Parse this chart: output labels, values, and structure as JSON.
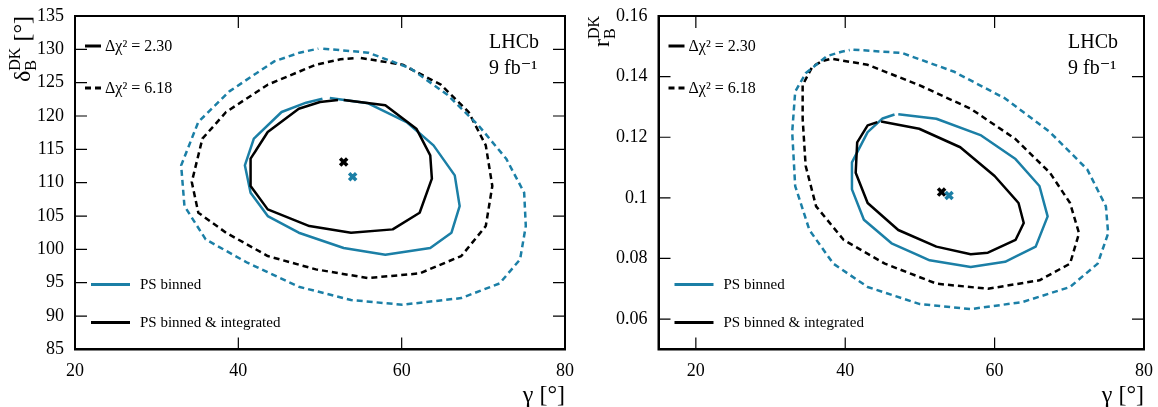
{
  "chart_data": [
    {
      "type": "line",
      "xlabel": "γ [°]",
      "ylabel": "δ$_{B}$$^{DK}$ [°]",
      "xlim": [
        20,
        80
      ],
      "xticks": [
        20,
        40,
        60,
        80
      ],
      "ylim": [
        85,
        135
      ],
      "yticks": [
        85,
        90,
        95,
        100,
        105,
        110,
        115,
        120,
        125,
        130,
        135
      ],
      "grid": false,
      "legend": "left",
      "annotations": [
        "Δχ² = 2.30",
        "LHCb",
        "9 fb⁻¹"
      ],
      "series": [
        {
          "name": "PS binned",
          "color": "#1b7fa6",
          "line_style": "solid",
          "x": [
            51.2,
            55.9,
            60.6,
            63.9,
            66.5,
            67.1,
            66.1,
            63.5,
            58.0,
            52.9,
            47.4,
            43.6,
            41.5,
            40.8,
            41.9,
            45.3,
            48.3,
            50.3
          ],
          "values": [
            122.7,
            121.9,
            119.1,
            115.6,
            111.1,
            106.5,
            102.5,
            100.2,
            99.2,
            100.2,
            102.5,
            105.0,
            108.5,
            112.6,
            116.6,
            120.6,
            122.0,
            122.6
          ]
        },
        {
          "name": "PS binned & integrated",
          "color": "#000000",
          "line_style": "solid",
          "x": [
            52.9,
            58.0,
            61.8,
            63.5,
            63.7,
            62.2,
            58.9,
            53.8,
            48.7,
            43.6,
            41.5,
            41.5,
            43.6,
            47.4,
            50.0,
            52.2
          ],
          "values": [
            122.4,
            121.6,
            118.1,
            114.1,
            110.6,
            105.5,
            103.0,
            102.5,
            103.5,
            106.0,
            109.5,
            113.6,
            117.6,
            121.1,
            122.1,
            122.4
          ]
        },
        {
          "name": "Δχ² = 6.18",
          "color": "#000000",
          "line_style": "dashed",
          "x": [
            55.0,
            60.1,
            64.8,
            68.2,
            70.3,
            71.1,
            70.3,
            67.3,
            62.2,
            55.9,
            49.5,
            43.6,
            38.5,
            35.1,
            34.3,
            35.6,
            38.5,
            43.6,
            49.5,
            52.5,
            54.4
          ],
          "values": [
            128.7,
            127.7,
            124.7,
            120.6,
            115.6,
            109.5,
            103.5,
            99.0,
            96.4,
            95.7,
            97.0,
            99.0,
            102.5,
            105.5,
            110.1,
            116.6,
            120.6,
            124.7,
            127.7,
            128.5,
            128.7
          ]
        },
        {
          "color": "#1b7fa6",
          "line_style": "dashed",
          "x": [
            50.4,
            55.9,
            61.0,
            65.6,
            69.4,
            72.8,
            75.0,
            75.2,
            74.5,
            72.0,
            67.3,
            60.1,
            53.8,
            47.4,
            41.1,
            36.0,
            33.4,
            33.0,
            35.1,
            38.9,
            44.4,
            47.5,
            49.8
          ],
          "values": [
            130.1,
            129.5,
            127.2,
            123.2,
            118.6,
            113.6,
            108.5,
            103.5,
            98.5,
            94.9,
            92.7,
            91.7,
            92.4,
            94.4,
            98.0,
            101.5,
            106.5,
            112.6,
            119.1,
            123.7,
            128.2,
            129.5,
            130.1
          ]
        },
        {
          "type": "scatter",
          "color": "#000000",
          "marker": "cross",
          "x": [
            52.9
          ],
          "values": [
            113.1
          ]
        },
        {
          "type": "scatter",
          "color": "#1b7fa6",
          "marker": "cross",
          "x": [
            54.0
          ],
          "values": [
            110.9
          ]
        }
      ]
    },
    {
      "type": "line",
      "xlabel": "γ [°]",
      "ylabel": "r$_{B}$$^{DK}$",
      "xlim": [
        15,
        80
      ],
      "xticks": [
        20,
        40,
        60,
        80
      ],
      "ylim": [
        0.05,
        0.16
      ],
      "yticks": [
        0.06,
        0.08,
        0.1,
        0.12,
        0.14,
        0.16
      ],
      "grid": false,
      "legend": "left",
      "annotations": [
        "Δχ² = 2.30",
        "LHCb",
        "9 fb⁻¹"
      ],
      "series": [
        {
          "name": "PS binned",
          "color": "#1b7fa6",
          "line_style": "solid",
          "x": [
            47.1,
            52.2,
            58.2,
            62.8,
            66.0,
            67.1,
            65.5,
            61.4,
            56.8,
            51.3,
            46.2,
            42.5,
            40.9,
            40.9,
            43.0,
            45.0,
            46.6
          ],
          "values": [
            0.1276,
            0.1261,
            0.1206,
            0.1128,
            0.1039,
            0.0939,
            0.0839,
            0.0789,
            0.0772,
            0.0794,
            0.085,
            0.0928,
            0.1028,
            0.1117,
            0.1217,
            0.1262,
            0.1275
          ]
        },
        {
          "name": "PS binned & integrated",
          "color": "#000000",
          "line_style": "solid",
          "x": [
            44.8,
            49.9,
            55.4,
            60.0,
            63.2,
            63.9,
            62.8,
            59.1,
            56.8,
            52.2,
            47.1,
            43.0,
            41.4,
            41.6,
            43.0,
            44.3
          ],
          "values": [
            0.1252,
            0.1228,
            0.1167,
            0.1072,
            0.0983,
            0.0917,
            0.0861,
            0.0819,
            0.0814,
            0.0839,
            0.0894,
            0.0983,
            0.1083,
            0.1183,
            0.1239,
            0.125
          ]
        },
        {
          "name": "Δχ² = 6.18",
          "color": "#000000",
          "line_style": "dashed",
          "x": [
            38.4,
            43.0,
            49.9,
            56.8,
            62.8,
            67.4,
            70.1,
            71.3,
            70.1,
            66.0,
            59.1,
            52.2,
            45.3,
            39.8,
            36.1,
            34.7,
            34.3,
            34.3,
            35.6,
            37.0,
            38.0
          ],
          "values": [
            0.1458,
            0.1439,
            0.1372,
            0.1294,
            0.1194,
            0.1083,
            0.0983,
            0.0883,
            0.0783,
            0.0728,
            0.07,
            0.0717,
            0.0783,
            0.0861,
            0.0972,
            0.1106,
            0.1261,
            0.1372,
            0.1433,
            0.1452,
            0.1458
          ]
        },
        {
          "color": "#1b7fa6",
          "line_style": "dashed",
          "x": [
            41.1,
            47.6,
            54.5,
            61.4,
            67.4,
            72.4,
            74.9,
            75.2,
            73.8,
            70.1,
            63.7,
            56.8,
            49.9,
            43.0,
            38.4,
            35.2,
            33.3,
            32.9,
            33.3,
            34.7,
            37.5,
            39.5,
            40.6
          ],
          "values": [
            0.1489,
            0.1478,
            0.1417,
            0.1328,
            0.1217,
            0.1094,
            0.0972,
            0.0883,
            0.0783,
            0.0706,
            0.0656,
            0.0633,
            0.065,
            0.0706,
            0.0783,
            0.0894,
            0.1039,
            0.1217,
            0.135,
            0.1411,
            0.1467,
            0.1482,
            0.1488
          ]
        },
        {
          "type": "scatter",
          "color": "#000000",
          "marker": "cross",
          "x": [
            52.9
          ],
          "values": [
            0.1019
          ]
        },
        {
          "type": "scatter",
          "color": "#1b7fa6",
          "marker": "cross",
          "x": [
            53.9
          ],
          "values": [
            0.1008
          ]
        }
      ]
    }
  ]
}
